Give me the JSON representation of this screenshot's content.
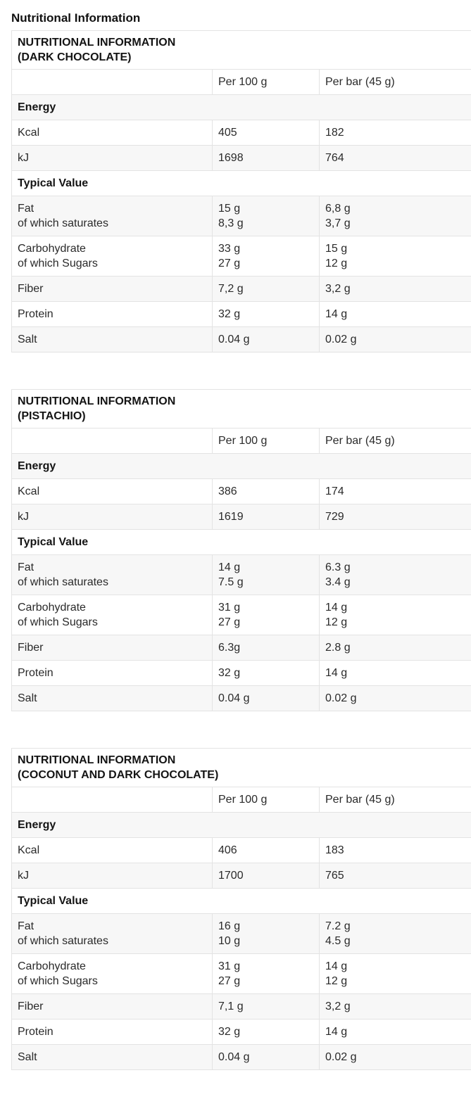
{
  "page_title": "Nutritional Information",
  "colors": {
    "border": "#e3e3e3",
    "row_alt_bg": "#f7f7f7",
    "text": "#2a2a2a",
    "heading_text": "#141414"
  },
  "tables": [
    {
      "title": [
        "NUTRITIONAL INFORMATION",
        "(DARK CHOCOLATE)"
      ],
      "col_headers": {
        "per100": "Per 100 g",
        "perbar": "Per bar (45 g)"
      },
      "sections": {
        "energy": "Energy",
        "typical": "Typical Value"
      },
      "rows": {
        "kcal": {
          "label": "Kcal",
          "per100": "405",
          "perbar": "182"
        },
        "kj": {
          "label": "kJ",
          "per100": "1698",
          "perbar": "764"
        },
        "fat": {
          "labels": [
            "Fat",
            "of which saturates"
          ],
          "per100": [
            "15 g",
            "8,3 g"
          ],
          "perbar": [
            "6,8 g",
            "3,7 g"
          ]
        },
        "carb": {
          "labels": [
            "Carbohydrate",
            "of which Sugars"
          ],
          "per100": [
            "33 g",
            "27 g"
          ],
          "perbar": [
            "15 g",
            "12 g"
          ]
        },
        "fiber": {
          "label": "Fiber",
          "per100": "7,2 g",
          "perbar": "3,2 g"
        },
        "protein": {
          "label": "Protein",
          "per100": "32 g",
          "perbar": "14 g"
        },
        "salt": {
          "label": "Salt",
          "per100": "0.04 g",
          "perbar": "0.02 g"
        }
      }
    },
    {
      "title": [
        "NUTRITIONAL INFORMATION",
        "(PISTACHIO)"
      ],
      "col_headers": {
        "per100": "Per 100 g",
        "perbar": "Per bar (45 g)"
      },
      "sections": {
        "energy": "Energy",
        "typical": "Typical Value"
      },
      "rows": {
        "kcal": {
          "label": "Kcal",
          "per100": "386",
          "perbar": "174"
        },
        "kj": {
          "label": "kJ",
          "per100": "1619",
          "perbar": "729"
        },
        "fat": {
          "labels": [
            "Fat",
            "of which saturates"
          ],
          "per100": [
            "14 g",
            "7.5 g"
          ],
          "perbar": [
            "6.3 g",
            "3.4 g"
          ]
        },
        "carb": {
          "labels": [
            "Carbohydrate",
            "of which Sugars"
          ],
          "per100": [
            "31 g",
            "27 g"
          ],
          "perbar": [
            "14 g",
            "12 g"
          ]
        },
        "fiber": {
          "label": "Fiber",
          "per100": "6.3g",
          "perbar": "2.8 g"
        },
        "protein": {
          "label": "Protein",
          "per100": "32 g",
          "perbar": "14 g"
        },
        "salt": {
          "label": "Salt",
          "per100": "0.04 g",
          "perbar": "0.02 g"
        }
      }
    },
    {
      "title": [
        "NUTRITIONAL INFORMATION",
        "(COCONUT AND DARK CHOCOLATE)"
      ],
      "col_headers": {
        "per100": "Per 100 g",
        "perbar": "Per bar (45 g)"
      },
      "sections": {
        "energy": "Energy",
        "typical": "Typical Value"
      },
      "rows": {
        "kcal": {
          "label": "Kcal",
          "per100": "406",
          "perbar": "183"
        },
        "kj": {
          "label": "kJ",
          "per100": "1700",
          "perbar": "765"
        },
        "fat": {
          "labels": [
            "Fat",
            "of which saturates"
          ],
          "per100": [
            "16 g",
            "10 g"
          ],
          "perbar": [
            "7.2 g",
            "4.5 g"
          ]
        },
        "carb": {
          "labels": [
            "Carbohydrate",
            "of which Sugars"
          ],
          "per100": [
            "31 g",
            "27 g"
          ],
          "perbar": [
            "14 g",
            "12 g"
          ]
        },
        "fiber": {
          "label": "Fiber",
          "per100": "7,1 g",
          "perbar": "3,2 g"
        },
        "protein": {
          "label": "Protein",
          "per100": "32 g",
          "perbar": "14 g"
        },
        "salt": {
          "label": "Salt",
          "per100": "0.04 g",
          "perbar": "0.02 g"
        }
      }
    }
  ]
}
